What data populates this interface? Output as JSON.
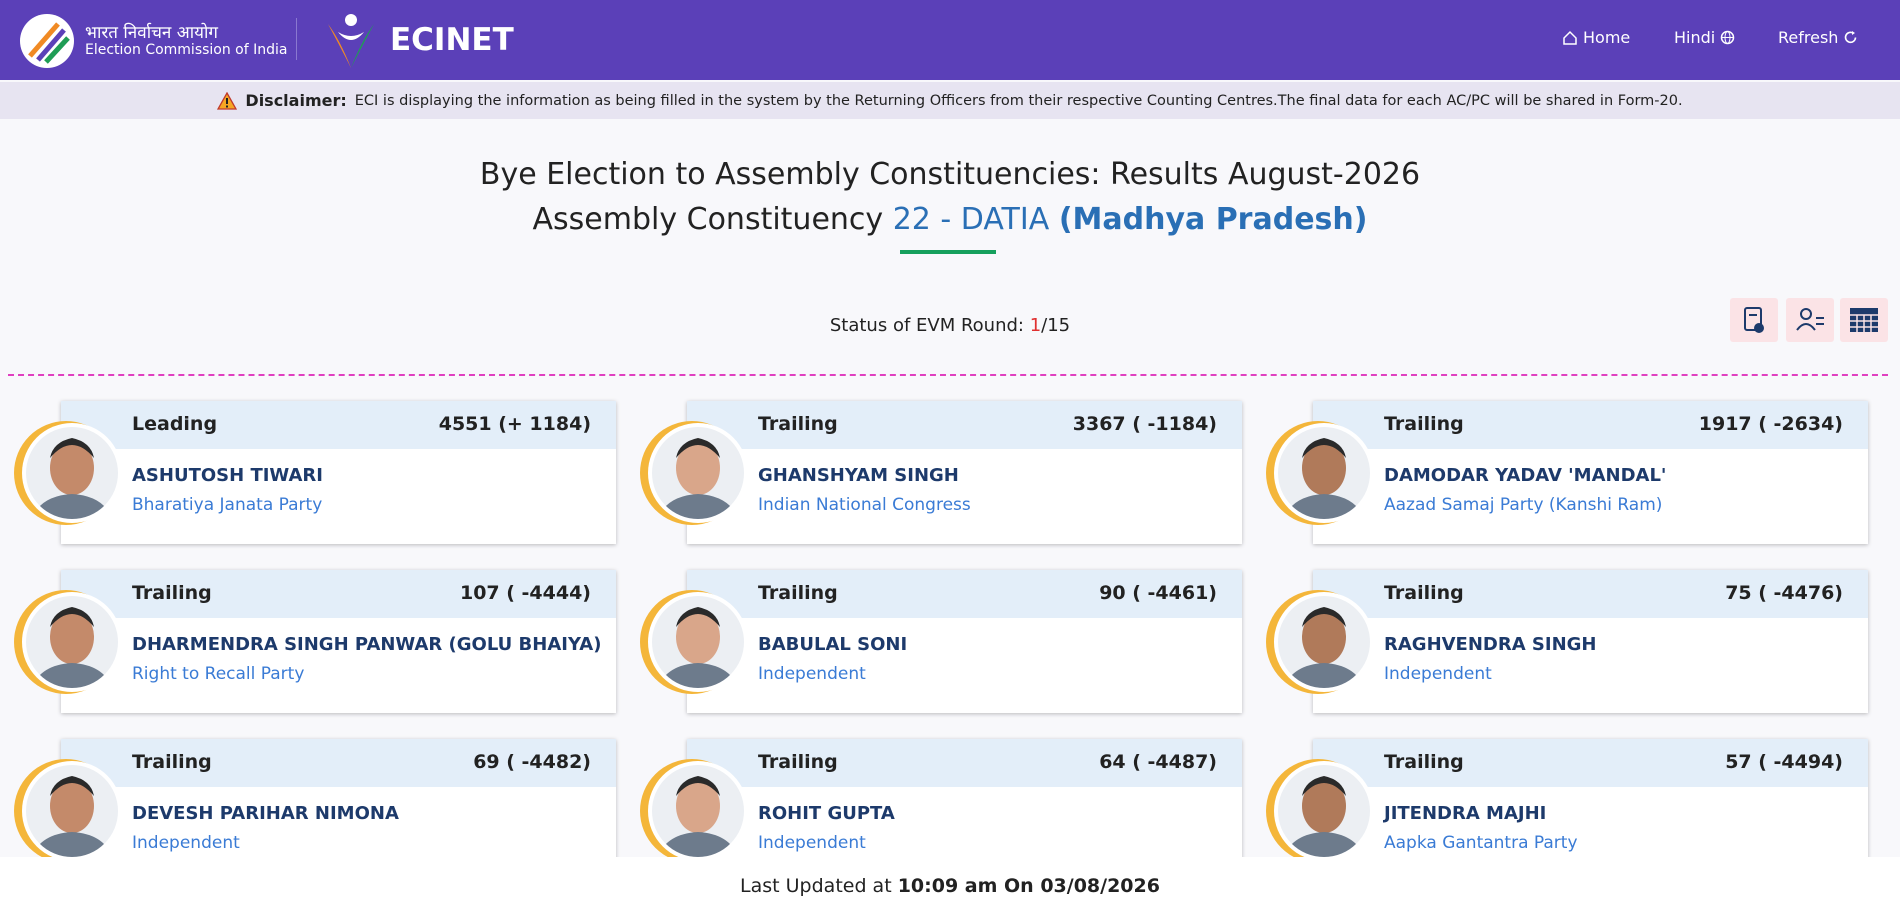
{
  "header": {
    "logo_hindi": "भारत निर्वाचन आयोग",
    "logo_english": "Election Commission of India",
    "brand": "ECINET",
    "nav": [
      "Home",
      "Hindi",
      "Refresh"
    ]
  },
  "disclaimer": {
    "label": "Disclaimer:",
    "text": "ECI is displaying the information as being filled in the system by the Returning Officers from their respective Counting Centres.The final data for each AC/PC will be shared in Form-20."
  },
  "title": {
    "line1": "Bye Election to Assembly Constituencies: Results August-2026",
    "prefix": "Assembly Constituency",
    "constituency": "22 - DATIA",
    "state": "(Madhya Pradesh)"
  },
  "status": {
    "label": "Status of EVM Round:",
    "current_round": "1",
    "round_total": "/15"
  },
  "candidates": [
    {
      "status": "Leading",
      "votes": "4551 (+ 1184)",
      "name": "ASHUTOSH TIWARI",
      "party": "Bharatiya Janata Party"
    },
    {
      "status": "Trailing",
      "votes": "3367 ( -1184)",
      "name": "GHANSHYAM SINGH",
      "party": "Indian National Congress"
    },
    {
      "status": "Trailing",
      "votes": "1917 ( -2634)",
      "name": "DAMODAR YADAV 'MANDAL'",
      "party": "Aazad Samaj Party (Kanshi Ram)"
    },
    {
      "status": "Trailing",
      "votes": "107 ( -4444)",
      "name": "DHARMENDRA SINGH PANWAR (GOLU BHAIYA)",
      "party": "Right to Recall Party"
    },
    {
      "status": "Trailing",
      "votes": "90 ( -4461)",
      "name": "BABULAL SONI",
      "party": "Independent"
    },
    {
      "status": "Trailing",
      "votes": "75 ( -4476)",
      "name": "RAGHVENDRA SINGH",
      "party": "Independent"
    },
    {
      "status": "Trailing",
      "votes": "69 ( -4482)",
      "name": "DEVESH PARIHAR NIMONA",
      "party": "Independent"
    },
    {
      "status": "Trailing",
      "votes": "64 ( -4487)",
      "name": "ROHIT GUPTA",
      "party": "Independent"
    },
    {
      "status": "Trailing",
      "votes": "57 ( -4494)",
      "name": "JITENDRA MAJHI",
      "party": "Aapka Gantantra Party"
    }
  ],
  "footer": {
    "label": "Last Updated at",
    "timestamp": "10:09 am On 03/08/2026"
  }
}
